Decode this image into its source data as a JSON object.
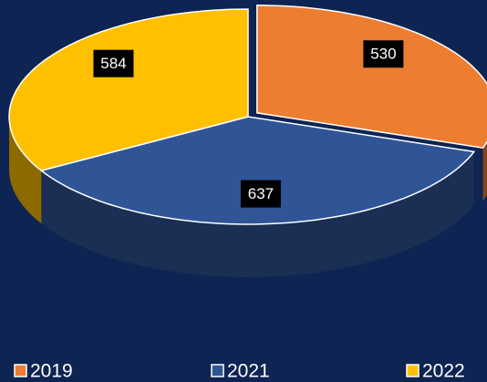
{
  "chart_data": {
    "type": "pie3d",
    "categories": [
      "2019",
      "2021",
      "2022"
    ],
    "values": [
      530,
      637,
      584
    ],
    "colors": [
      "#ED7D31",
      "#2F5597",
      "#FFC000"
    ],
    "legend": "bottom"
  }
}
